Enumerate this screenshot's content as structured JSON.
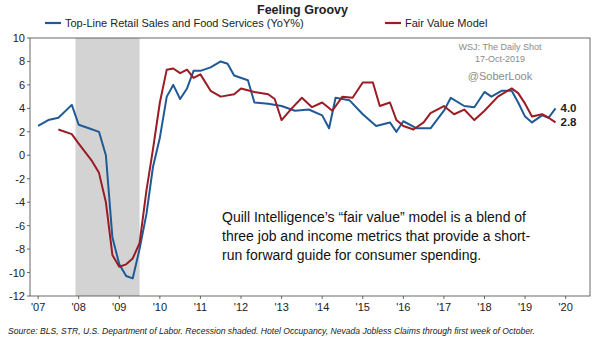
{
  "chart_data": {
    "type": "line",
    "title": "Feeling Groovy",
    "legend": "top",
    "grid": false,
    "xlim": [
      2006.8,
      2020.6
    ],
    "xticks": [
      {
        "value": 2007,
        "label": "'07"
      },
      {
        "value": 2008,
        "label": "'08"
      },
      {
        "value": 2009,
        "label": "'09"
      },
      {
        "value": 2010,
        "label": "'10"
      },
      {
        "value": 2011,
        "label": "'11"
      },
      {
        "value": 2012,
        "label": "'12"
      },
      {
        "value": 2013,
        "label": "'13"
      },
      {
        "value": 2014,
        "label": "'14"
      },
      {
        "value": 2015,
        "label": "'15"
      },
      {
        "value": 2016,
        "label": "'16"
      },
      {
        "value": 2017,
        "label": "'17"
      },
      {
        "value": 2018,
        "label": "'18"
      },
      {
        "value": 2019,
        "label": "'19"
      },
      {
        "value": 2020,
        "label": "'20"
      }
    ],
    "ylim": [
      -12,
      10
    ],
    "yticks": [
      -12,
      -10,
      -8,
      -6,
      -4,
      -2,
      0,
      2,
      4,
      6,
      8,
      10
    ],
    "shaded_ranges": [
      [
        2007.92,
        2009.5
      ]
    ],
    "series": [
      {
        "name": "Top-Line Retail Sales and Food Services (YoY%)",
        "color": "#1f5a96",
        "x": [
          2007.0,
          2007.25,
          2007.5,
          2007.83,
          2008.0,
          2008.25,
          2008.5,
          2008.67,
          2008.83,
          2009.0,
          2009.17,
          2009.33,
          2009.5,
          2009.67,
          2009.83,
          2010.0,
          2010.17,
          2010.33,
          2010.5,
          2010.67,
          2010.83,
          2011.0,
          2011.25,
          2011.5,
          2011.67,
          2011.83,
          2012.17,
          2012.33,
          2012.67,
          2013.0,
          2013.33,
          2013.67,
          2014.0,
          2014.17,
          2014.33,
          2014.67,
          2015.0,
          2015.33,
          2015.67,
          2015.83,
          2016.0,
          2016.33,
          2016.67,
          2017.0,
          2017.17,
          2017.5,
          2017.75,
          2018.0,
          2018.17,
          2018.42,
          2018.67,
          2018.83,
          2019.0,
          2019.17,
          2019.42,
          2019.58,
          2019.75
        ],
        "values": [
          2.5,
          3.0,
          3.2,
          4.3,
          2.6,
          2.3,
          2.0,
          0.0,
          -7.0,
          -9.3,
          -10.3,
          -10.5,
          -8.0,
          -5.0,
          -1.0,
          1.5,
          5.0,
          6.0,
          4.8,
          5.7,
          7.2,
          7.2,
          7.5,
          8.0,
          7.8,
          6.8,
          6.4,
          4.5,
          4.4,
          4.2,
          3.8,
          3.9,
          3.4,
          2.3,
          4.9,
          4.7,
          3.5,
          2.5,
          2.8,
          2.0,
          2.9,
          2.3,
          2.3,
          3.8,
          4.9,
          4.2,
          4.1,
          5.4,
          5.0,
          5.5,
          5.5,
          4.5,
          3.3,
          2.8,
          3.4,
          3.2,
          4.0
        ]
      },
      {
        "name": "Fair Value Model",
        "color": "#9b1c24",
        "x": [
          2007.5,
          2007.83,
          2008.0,
          2008.33,
          2008.5,
          2008.67,
          2008.83,
          2009.0,
          2009.17,
          2009.33,
          2009.5,
          2009.67,
          2009.83,
          2010.0,
          2010.17,
          2010.33,
          2010.5,
          2010.67,
          2010.83,
          2011.0,
          2011.25,
          2011.5,
          2011.83,
          2012.0,
          2012.33,
          2012.67,
          2012.83,
          2013.0,
          2013.25,
          2013.5,
          2013.75,
          2014.0,
          2014.25,
          2014.5,
          2014.75,
          2015.0,
          2015.25,
          2015.42,
          2015.67,
          2015.83,
          2016.0,
          2016.25,
          2016.5,
          2016.67,
          2017.0,
          2017.25,
          2017.5,
          2017.75,
          2018.0,
          2018.33,
          2018.67,
          2018.83,
          2019.0,
          2019.17,
          2019.42,
          2019.58,
          2019.75
        ],
        "values": [
          2.2,
          1.8,
          1.0,
          -0.5,
          -1.5,
          -4.0,
          -8.5,
          -9.5,
          -9.3,
          -8.8,
          -7.5,
          -3.0,
          0.5,
          4.5,
          7.3,
          7.4,
          7.0,
          7.3,
          6.6,
          6.9,
          5.5,
          5.0,
          5.2,
          5.7,
          5.4,
          5.2,
          4.8,
          3.0,
          4.0,
          4.9,
          4.1,
          4.5,
          3.8,
          5.0,
          4.9,
          6.2,
          6.2,
          4.2,
          4.5,
          3.0,
          2.5,
          2.2,
          2.8,
          3.6,
          4.2,
          3.5,
          3.9,
          3.0,
          3.8,
          5.0,
          5.7,
          5.3,
          4.4,
          3.3,
          3.5,
          3.2,
          2.8
        ]
      }
    ],
    "annotations": [
      {
        "text": "4.0",
        "x": 2019.75,
        "y": 4.0
      },
      {
        "text": "2.8",
        "x": 2019.75,
        "y": 2.8
      }
    ],
    "note": [
      "Quill Intelligence’s “fair value” model is a blend of",
      "three job and income metrics that provide a short-",
      "run forward guide for consumer spending."
    ],
    "credits": [
      "WSJ: The Daily Shot",
      "17-Oct-2019",
      "@SoberLook"
    ],
    "source": "Source: BLS, STR, U.S. Department of Labor. Recession shaded. Hotel Occupancy, Nevada Jobless Claims through first week of October."
  }
}
